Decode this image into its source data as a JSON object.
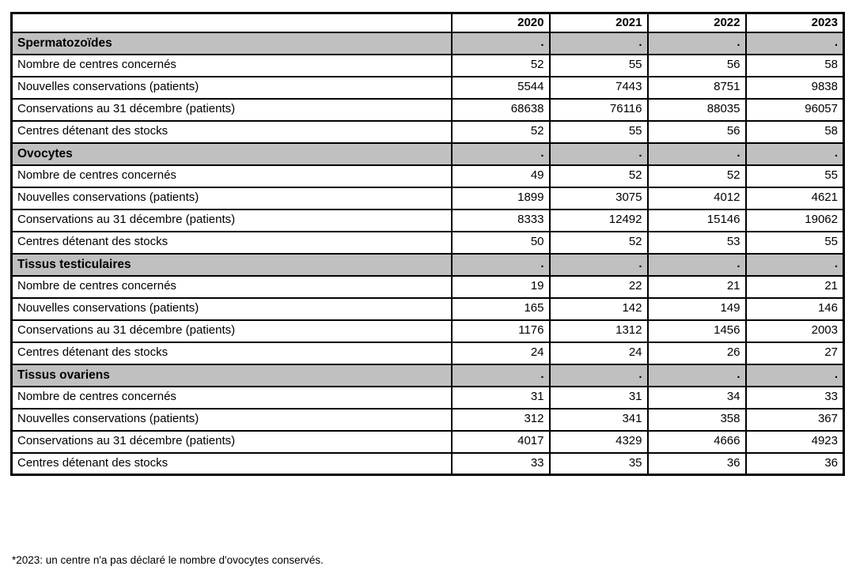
{
  "table": {
    "corner_label": "",
    "year_headers": [
      "2020",
      "2021",
      "2022",
      "2023"
    ],
    "sections": [
      {
        "title": "Spermatozoïdes",
        "dots": [
          ".",
          ".",
          ".",
          "."
        ],
        "rows": [
          {
            "label": "Nombre de centres concernés",
            "values": [
              "52",
              "55",
              "56",
              "58"
            ]
          },
          {
            "label": "Nouvelles conservations (patients)",
            "values": [
              "5544",
              "7443",
              "8751",
              "9838"
            ]
          },
          {
            "label": "Conservations au 31 décembre (patients)",
            "values": [
              "68638",
              "76116",
              "88035",
              "96057"
            ]
          },
          {
            "label": "Centres détenant des stocks",
            "values": [
              "52",
              "55",
              "56",
              "58"
            ]
          }
        ]
      },
      {
        "title": "Ovocytes",
        "dots": [
          ".",
          ".",
          ".",
          "."
        ],
        "rows": [
          {
            "label": "Nombre de centres concernés",
            "values": [
              "49",
              "52",
              "52",
              "55"
            ]
          },
          {
            "label": "Nouvelles conservations (patients)",
            "values": [
              "1899",
              "3075",
              "4012",
              "4621"
            ]
          },
          {
            "label": "Conservations au 31 décembre (patients)",
            "values": [
              "8333",
              "12492",
              "15146",
              "19062"
            ]
          },
          {
            "label": "Centres détenant des stocks",
            "values": [
              "50",
              "52",
              "53",
              "55"
            ]
          }
        ]
      },
      {
        "title": "Tissus testiculaires",
        "dots": [
          ".",
          ".",
          ".",
          "."
        ],
        "rows": [
          {
            "label": "Nombre de centres concernés",
            "values": [
              "19",
              "22",
              "21",
              "21"
            ]
          },
          {
            "label": "Nouvelles conservations (patients)",
            "values": [
              "165",
              "142",
              "149",
              "146"
            ]
          },
          {
            "label": "Conservations au 31 décembre (patients)",
            "values": [
              "1176",
              "1312",
              "1456",
              "2003"
            ]
          },
          {
            "label": "Centres détenant des stocks",
            "values": [
              "24",
              "24",
              "26",
              "27"
            ]
          }
        ]
      },
      {
        "title": "Tissus ovariens",
        "dots": [
          ".",
          ".",
          ".",
          "."
        ],
        "rows": [
          {
            "label": "Nombre de centres concernés",
            "values": [
              "31",
              "31",
              "34",
              "33"
            ]
          },
          {
            "label": "Nouvelles conservations (patients)",
            "values": [
              "312",
              "341",
              "358",
              "367"
            ]
          },
          {
            "label": "Conservations au 31 décembre (patients)",
            "values": [
              "4017",
              "4329",
              "4666",
              "4923"
            ]
          },
          {
            "label": "Centres détenant des stocks",
            "values": [
              "33",
              "35",
              "36",
              "36"
            ]
          }
        ]
      }
    ]
  },
  "footnote": "*2023: un centre n'a pas déclaré le nombre d'ovocytes conservés.",
  "colors": {
    "section_header_bg": "#c0c0c0",
    "border": "#000000",
    "text": "#000000",
    "background": "#ffffff"
  }
}
